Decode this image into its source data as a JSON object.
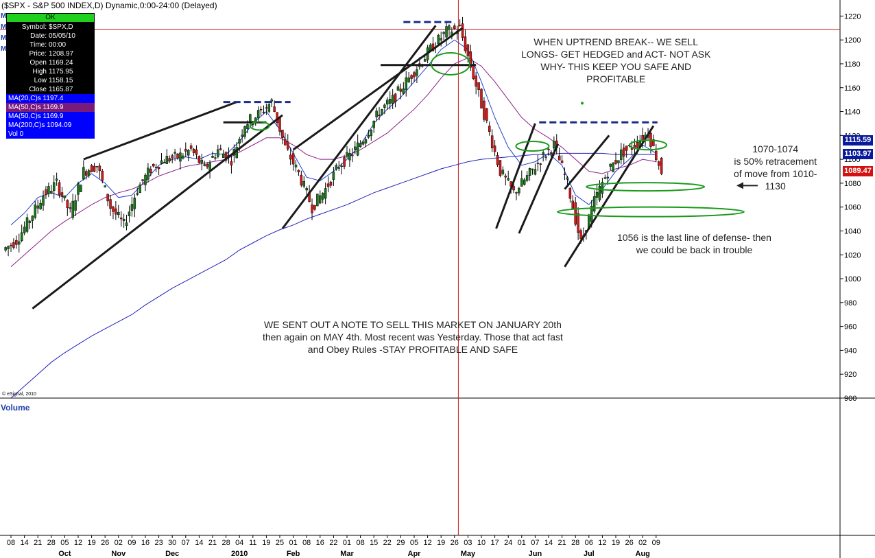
{
  "header": {
    "title": "($SPX - S&P 500 INDEX,D) Dynamic,0:00-24:00 (Delayed)",
    "copyright": "© eSignal, 2010",
    "volume_label": "Volume"
  },
  "info_box": {
    "status": "OK",
    "rows": [
      {
        "k": "Symbol:",
        "v": "$SPX,D"
      },
      {
        "k": "Date:",
        "v": "05/05/10"
      },
      {
        "k": "Time:",
        "v": "00:00"
      },
      {
        "k": "Price:",
        "v": "1208.97"
      },
      {
        "k": "Open",
        "v": "1169.24"
      },
      {
        "k": "High",
        "v": "1175.95"
      },
      {
        "k": "Low",
        "v": "1158.15"
      },
      {
        "k": "Close",
        "v": "1165.87"
      }
    ],
    "ma_rows": [
      {
        "label": "MA(20,C)s 1197.4",
        "style": "blue"
      },
      {
        "label": "MA(50,C)s 1169.9",
        "style": "purple"
      },
      {
        "label": "MA(50,C)s 1169.9",
        "style": "blue"
      },
      {
        "label": "MA(200,C)s 1094.09",
        "style": "blue"
      },
      {
        "label": "Vol 0",
        "style": "blue"
      }
    ]
  },
  "price_tags": [
    {
      "label": "1115.59",
      "value": 1115.59,
      "color": "#0a1a9e"
    },
    {
      "label": "1103.97",
      "value": 1103.97,
      "color": "#0a1a9e"
    },
    {
      "label": "1089.47",
      "value": 1089.47,
      "color": "#d41010"
    }
  ],
  "notes": {
    "uptrend": [
      "WHEN UPTREND BREAK-- WE SELL",
      "LONGS- GET HEDGED and ACT- NOT ASK",
      "WHY- THIS KEEP YOU SAFE AND",
      "PROFITABLE"
    ],
    "retracement": [
      "1070-1074",
      "is 50% retracement",
      "of move from 1010-",
      "1130"
    ],
    "defense": [
      "1056 is the last line of defense- then",
      "we could be back in trouble"
    ],
    "sell_note": [
      "WE SENT OUT A NOTE TO SELL THIS MARKET ON JANUARY 20th",
      "then again on MAY 4th.  Most recent was Yesterday.  Those that act fast",
      "and Obey Rules -STAY PROFITABLE AND SAFE"
    ]
  },
  "colors": {
    "candle_up": "#1a7a1a",
    "candle_down": "#d81818",
    "ma20": "#1f3fce",
    "ma50": "#8a1f8a",
    "ma200": "#1f1fbe",
    "trendline": "#1a1a1a",
    "resistance": "#1a2a8e",
    "ellipse": "#1a9a1a",
    "crosshair": "#c81818",
    "axis": "#000000"
  },
  "chart_data": {
    "type": "candlestick",
    "ylim": [
      900,
      1230
    ],
    "y_ticks": [
      900,
      920,
      940,
      960,
      980,
      1000,
      1020,
      1040,
      1060,
      1080,
      1100,
      1120,
      1140,
      1160,
      1180,
      1200,
      1220
    ],
    "x_day_labels": [
      "08",
      "14",
      "21",
      "28",
      "05",
      "12",
      "19",
      "26",
      "02",
      "09",
      "16",
      "23",
      "30",
      "07",
      "14",
      "21",
      "28",
      "04",
      "11",
      "19",
      "25",
      "01",
      "08",
      "16",
      "22",
      "01",
      "08",
      "15",
      "22",
      "29",
      "05",
      "12",
      "19",
      "26",
      "03",
      "10",
      "17",
      "24",
      "01",
      "07",
      "14",
      "21",
      "28",
      "06",
      "12",
      "19",
      "26",
      "02",
      "09"
    ],
    "x_month_labels": [
      {
        "label": "Oct",
        "day_index": 4
      },
      {
        "label": "Nov",
        "day_index": 8
      },
      {
        "label": "Dec",
        "day_index": 12
      },
      {
        "label": "2010",
        "day_index": 17
      },
      {
        "label": "Feb",
        "day_index": 21
      },
      {
        "label": "Mar",
        "day_index": 25
      },
      {
        "label": "Apr",
        "day_index": 30
      },
      {
        "label": "May",
        "day_index": 34
      },
      {
        "label": "Jun",
        "day_index": 39
      },
      {
        "label": "Jul",
        "day_index": 43
      },
      {
        "label": "Aug",
        "day_index": 47
      }
    ],
    "weekly_close": [
      1032,
      1050,
      1070,
      1080,
      1055,
      1090,
      1095,
      1060,
      1045,
      1075,
      1092,
      1100,
      1102,
      1108,
      1092,
      1108,
      1100,
      1130,
      1138,
      1148,
      1110,
      1088,
      1060,
      1075,
      1095,
      1105,
      1120,
      1140,
      1150,
      1165,
      1180,
      1195,
      1207,
      1210,
      1170,
      1130,
      1090,
      1072,
      1085,
      1100,
      1112,
      1080,
      1030,
      1065,
      1090,
      1105,
      1112,
      1122,
      1090
    ],
    "ma20": [
      1045,
      1055,
      1068,
      1072,
      1068,
      1080,
      1088,
      1080,
      1068,
      1070,
      1082,
      1095,
      1100,
      1102,
      1100,
      1105,
      1104,
      1115,
      1130,
      1140,
      1125,
      1105,
      1085,
      1082,
      1090,
      1100,
      1112,
      1130,
      1142,
      1152,
      1165,
      1178,
      1192,
      1200,
      1192,
      1165,
      1135,
      1110,
      1095,
      1098,
      1105,
      1095,
      1070,
      1062,
      1075,
      1090,
      1100,
      1112,
      1105
    ],
    "ma50": [
      1010,
      1020,
      1030,
      1040,
      1048,
      1055,
      1062,
      1068,
      1072,
      1075,
      1080,
      1086,
      1090,
      1094,
      1096,
      1098,
      1100,
      1106,
      1112,
      1118,
      1118,
      1112,
      1104,
      1100,
      1100,
      1103,
      1108,
      1115,
      1122,
      1132,
      1142,
      1154,
      1168,
      1180,
      1185,
      1178,
      1165,
      1150,
      1135,
      1125,
      1118,
      1110,
      1100,
      1090,
      1088,
      1092,
      1095,
      1100,
      1098
    ],
    "ma200": [
      900,
      910,
      920,
      930,
      938,
      945,
      952,
      958,
      964,
      970,
      978,
      985,
      992,
      998,
      1004,
      1010,
      1016,
      1024,
      1030,
      1036,
      1041,
      1045,
      1050,
      1054,
      1058,
      1062,
      1067,
      1072,
      1076,
      1080,
      1084,
      1088,
      1092,
      1095,
      1098,
      1100,
      1101,
      1102,
      1103,
      1104,
      1104,
      1105,
      1105,
      1105,
      1105,
      1104,
      1104,
      1104,
      1104
    ]
  }
}
